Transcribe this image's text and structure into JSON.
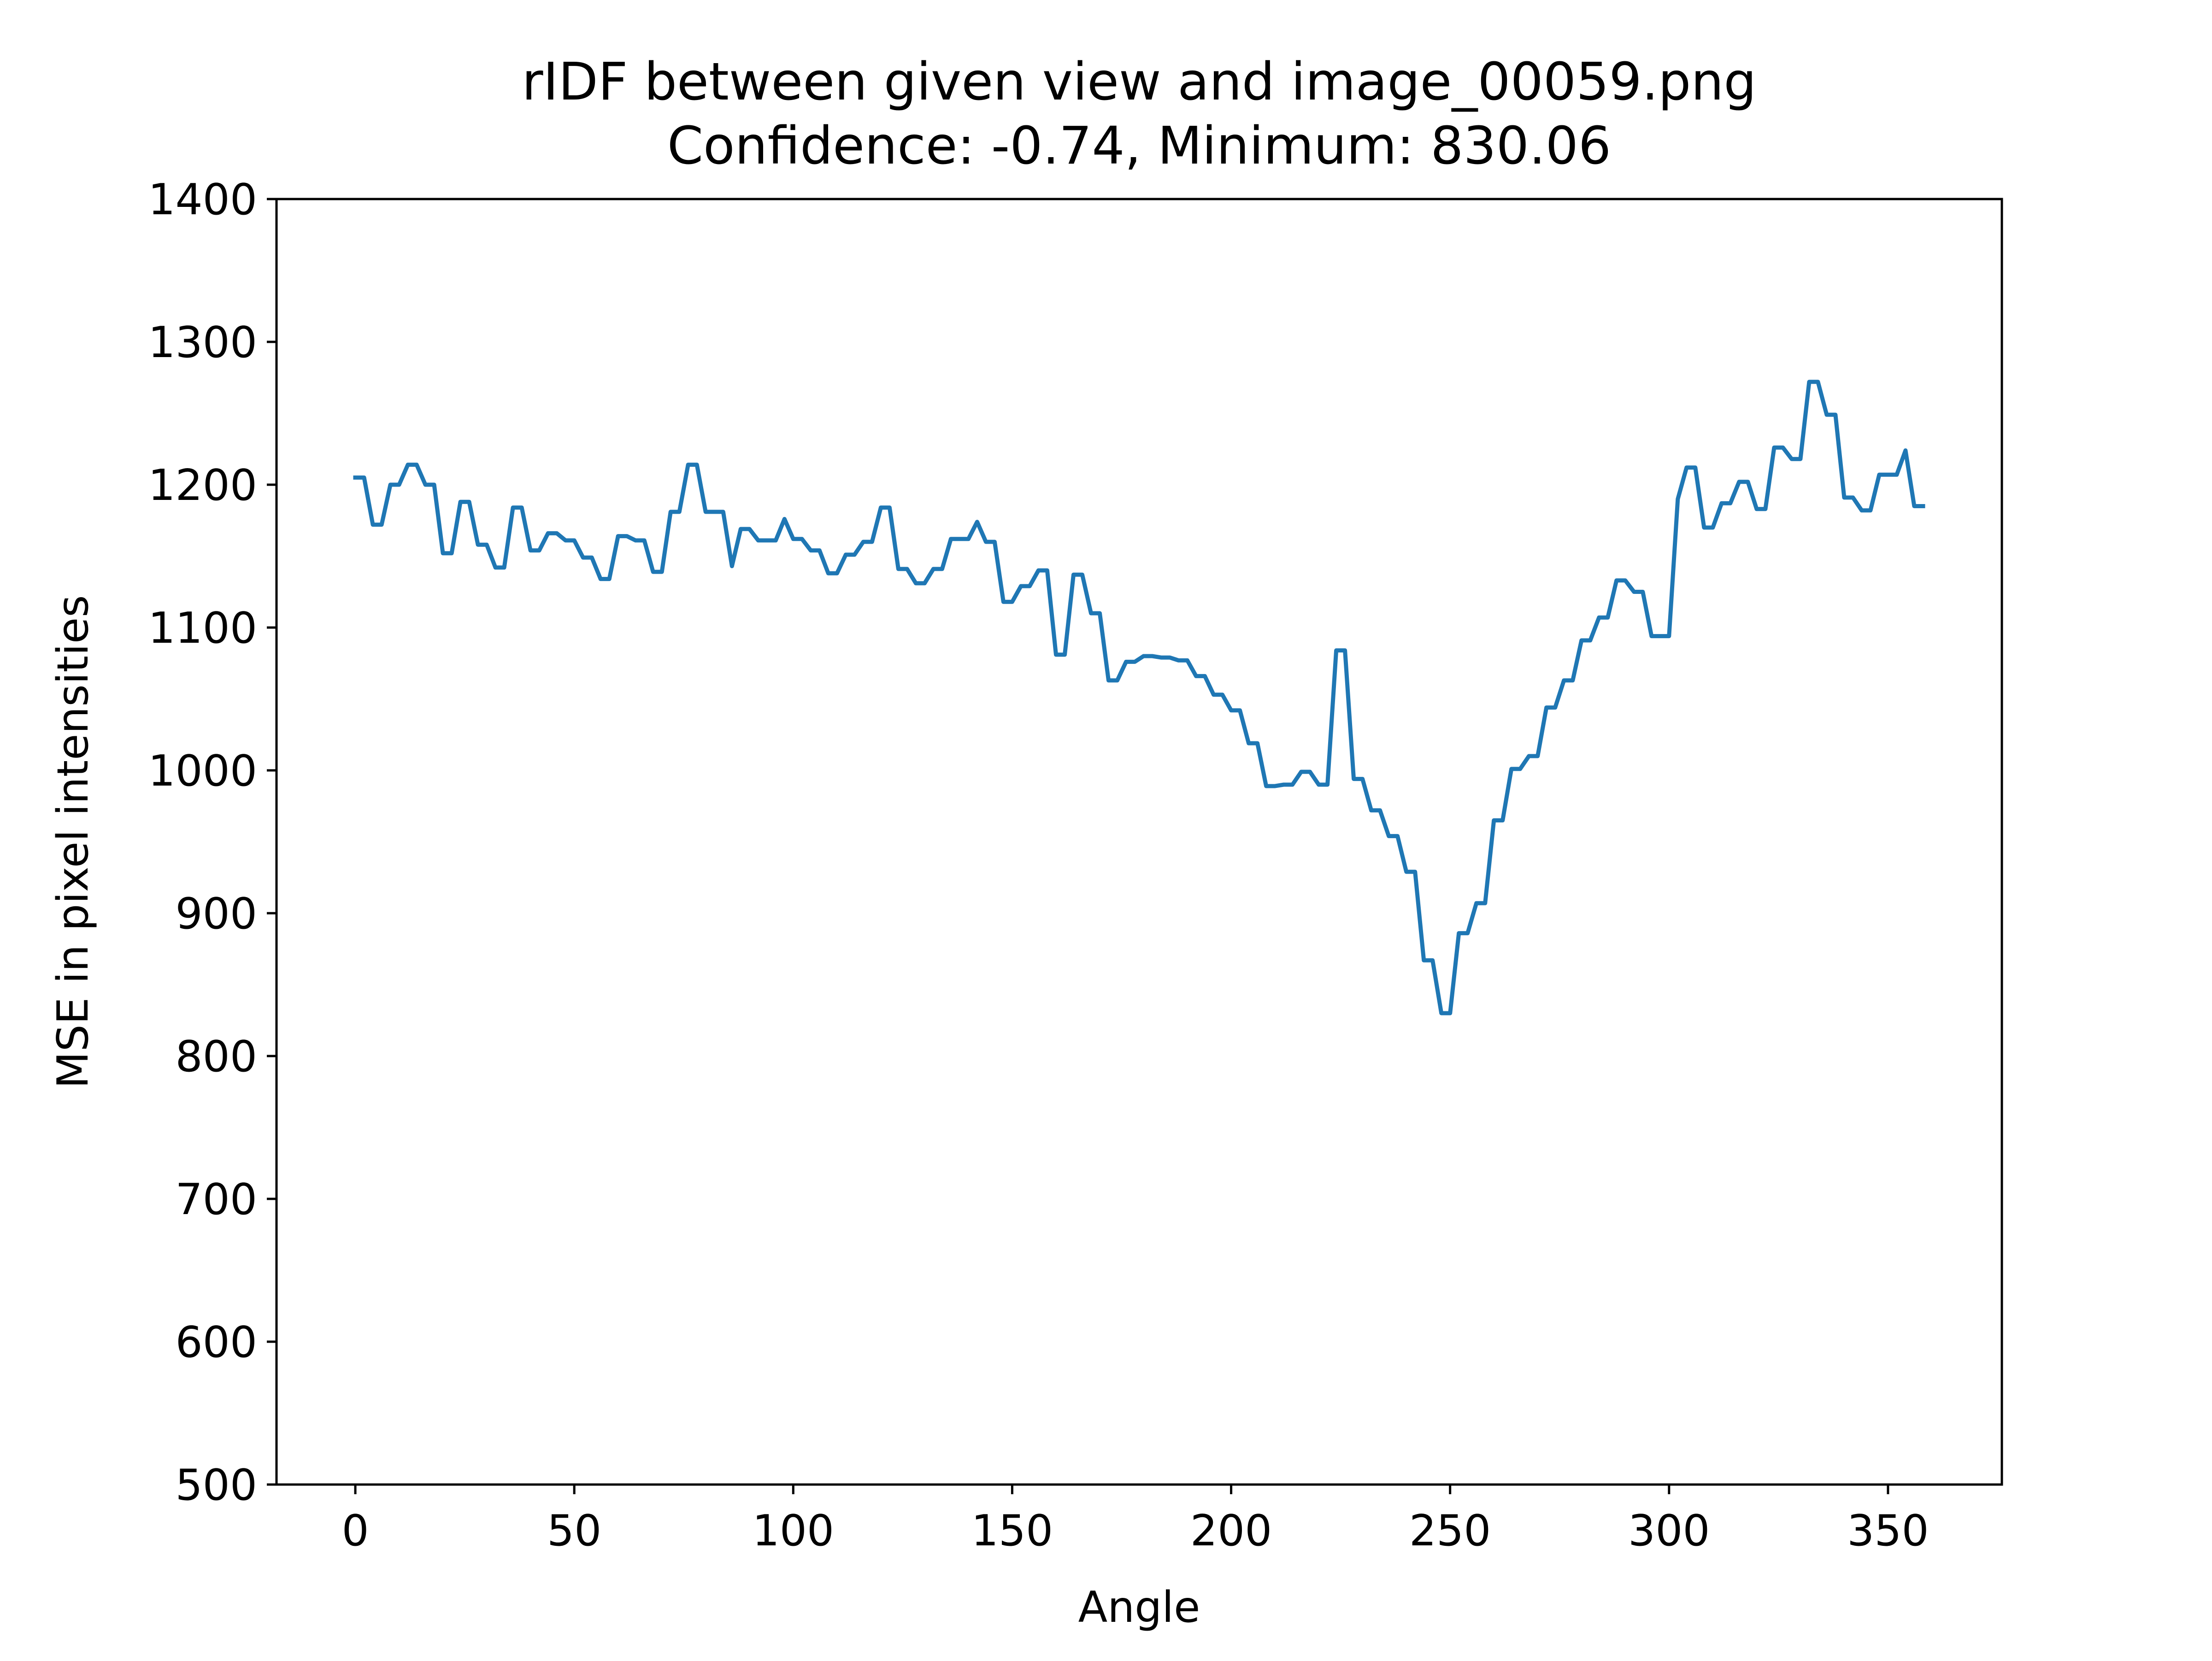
{
  "chart_data": {
    "type": "line",
    "title": "rIDF between given view and image_00059.png",
    "subtitle": "Confidence: -0.74, Minimum: 830.06",
    "xlabel": "Angle",
    "ylabel": "MSE in pixel intensities",
    "xlim": [
      -18,
      376
    ],
    "ylim": [
      500,
      1400
    ],
    "xticks": [
      "0",
      "50",
      "100",
      "150",
      "200",
      "250",
      "300",
      "350"
    ],
    "yticks": [
      "500",
      "600",
      "700",
      "800",
      "900",
      "1000",
      "1100",
      "1200",
      "1300",
      "1400"
    ],
    "grid": false,
    "line_color": "#1f77b4",
    "series": [
      {
        "x": [
          0,
          2,
          4,
          6,
          8,
          10,
          12,
          14,
          16,
          18,
          20,
          22,
          24,
          26,
          28,
          30,
          32,
          34,
          36,
          38,
          40,
          42,
          44,
          46,
          48,
          50,
          52,
          54,
          56,
          58,
          60,
          62,
          64,
          66,
          68,
          70,
          72,
          74,
          76,
          78,
          80,
          82,
          84,
          86,
          88,
          90,
          92,
          94,
          96,
          98,
          100,
          102,
          104,
          106,
          108,
          110,
          112,
          114,
          116,
          118,
          120,
          122,
          124,
          126,
          128,
          130,
          132,
          134,
          136,
          138,
          140,
          142,
          144,
          146,
          148,
          150,
          152,
          154,
          156,
          158,
          160,
          162,
          164,
          166,
          168,
          170,
          172,
          174,
          176,
          178,
          180,
          182,
          184,
          186,
          188,
          190,
          192,
          194,
          196,
          198,
          200,
          202,
          204,
          206,
          208,
          210,
          212,
          214,
          216,
          218,
          220,
          222,
          224,
          226,
          228,
          230,
          232,
          234,
          236,
          238,
          240,
          242,
          244,
          246,
          248,
          250,
          252,
          254,
          256,
          258,
          260,
          262,
          264,
          266,
          268,
          270,
          272,
          274,
          276,
          278,
          280,
          282,
          284,
          286,
          288,
          290,
          292,
          294,
          296,
          298,
          300,
          302,
          304,
          306,
          308,
          310,
          312,
          314,
          316,
          318,
          320,
          322,
          324,
          326,
          328,
          330,
          332,
          334,
          336,
          338,
          340,
          342,
          344,
          346,
          348,
          350,
          352,
          354,
          356,
          358
        ],
        "y": [
          1205,
          1205,
          1172,
          1172,
          1200,
          1200,
          1214,
          1214,
          1200,
          1200,
          1152,
          1152,
          1188,
          1188,
          1158,
          1158,
          1142,
          1142,
          1184,
          1184,
          1154,
          1154,
          1166,
          1166,
          1161,
          1161,
          1149,
          1149,
          1134,
          1134,
          1164,
          1164,
          1161,
          1161,
          1139,
          1139,
          1181,
          1181,
          1214,
          1214,
          1181,
          1181,
          1181,
          1143,
          1169,
          1169,
          1161,
          1161,
          1161,
          1176,
          1162,
          1162,
          1154,
          1154,
          1138,
          1138,
          1151,
          1151,
          1160,
          1160,
          1184,
          1184,
          1141,
          1141,
          1131,
          1131,
          1141,
          1141,
          1162,
          1162,
          1162,
          1174,
          1160,
          1160,
          1118,
          1118,
          1129,
          1129,
          1140,
          1140,
          1081,
          1081,
          1137,
          1137,
          1110,
          1110,
          1063,
          1063,
          1076,
          1076,
          1080,
          1080,
          1079,
          1079,
          1077,
          1077,
          1066,
          1066,
          1053,
          1053,
          1042,
          1042,
          1019,
          1019,
          989,
          989,
          990,
          990,
          999,
          999,
          990,
          990,
          1084,
          1084,
          994,
          994,
          972,
          972,
          954,
          954,
          929,
          929,
          867,
          867,
          830,
          830,
          886,
          886,
          907,
          907,
          965,
          965,
          1001,
          1001,
          1010,
          1010,
          1044,
          1044,
          1063,
          1063,
          1091,
          1091,
          1107,
          1107,
          1133,
          1133,
          1125,
          1125,
          1094,
          1094,
          1094,
          1190,
          1212,
          1212,
          1170,
          1170,
          1187,
          1187,
          1202,
          1202,
          1183,
          1183,
          1226,
          1226,
          1218,
          1218,
          1272,
          1272,
          1249,
          1249,
          1191,
          1191,
          1182,
          1182,
          1207,
          1207,
          1207,
          1224,
          1185,
          1185
        ]
      }
    ]
  }
}
